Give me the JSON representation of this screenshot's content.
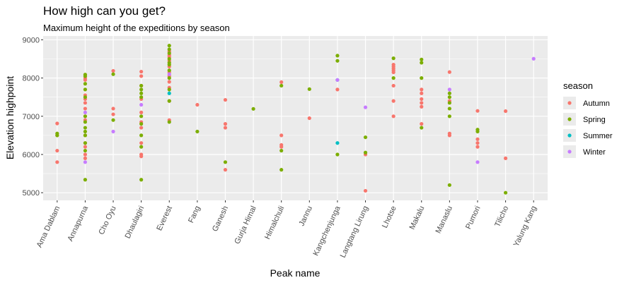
{
  "chart_data": {
    "type": "scatter",
    "title": "How high can you get?",
    "subtitle": "Maximum height of the expeditions by season",
    "xlabel": "Peak name",
    "ylabel": "Elevation highpoint",
    "ylim": [
      4800,
      9100
    ],
    "yticks": [
      5000,
      6000,
      7000,
      8000,
      9000
    ],
    "grid": true,
    "legend_position": "right",
    "legend_title": "season",
    "categories": [
      "Ama Dablam",
      "Annapurna",
      "Cho Oyu",
      "Dhaulagiri",
      "Everest",
      "Fang",
      "Ganesh",
      "Gurja Himal",
      "Himalchuli",
      "Jannu",
      "Kangchenjunga",
      "Langtang Lirung",
      "Lhotse",
      "Makalu",
      "Manaslu",
      "Pumori",
      "Tilicho",
      "Yalung Kang"
    ],
    "series": [
      {
        "name": "Autumn",
        "color": "#F8766D",
        "points": [
          [
            "Ama Dablam",
            6812
          ],
          [
            "Ama Dablam",
            6500
          ],
          [
            "Ama Dablam",
            6100
          ],
          [
            "Ama Dablam",
            5800
          ],
          [
            "Annapurna",
            8000
          ],
          [
            "Annapurna",
            7950
          ],
          [
            "Annapurna",
            7550
          ],
          [
            "Annapurna",
            7450
          ],
          [
            "Annapurna",
            7350
          ],
          [
            "Annapurna",
            7200
          ],
          [
            "Annapurna",
            7000
          ],
          [
            "Annapurna",
            6900
          ],
          [
            "Annapurna",
            6500
          ],
          [
            "Annapurna",
            6300
          ],
          [
            "Annapurna",
            6200
          ],
          [
            "Annapurna",
            6000
          ],
          [
            "Annapurna",
            5900
          ],
          [
            "Cho Oyu",
            8188
          ],
          [
            "Cho Oyu",
            7200
          ],
          [
            "Cho Oyu",
            7050
          ],
          [
            "Dhaulagiri",
            8167
          ],
          [
            "Dhaulagiri",
            8050
          ],
          [
            "Dhaulagiri",
            7800
          ],
          [
            "Dhaulagiri",
            7450
          ],
          [
            "Dhaulagiri",
            7100
          ],
          [
            "Dhaulagiri",
            6850
          ],
          [
            "Dhaulagiri",
            6700
          ],
          [
            "Dhaulagiri",
            6300
          ],
          [
            "Dhaulagiri",
            6000
          ],
          [
            "Dhaulagiri",
            5950
          ],
          [
            "Everest",
            8700
          ],
          [
            "Everest",
            8600
          ],
          [
            "Everest",
            8550
          ],
          [
            "Everest",
            8450
          ],
          [
            "Everest",
            8300
          ],
          [
            "Everest",
            8150
          ],
          [
            "Everest",
            8050
          ],
          [
            "Everest",
            7900
          ],
          [
            "Everest",
            7750
          ],
          [
            "Everest",
            7400
          ],
          [
            "Everest",
            6900
          ],
          [
            "Fang",
            7300
          ],
          [
            "Ganesh",
            7429
          ],
          [
            "Ganesh",
            6800
          ],
          [
            "Ganesh",
            6700
          ],
          [
            "Ganesh",
            5600
          ],
          [
            "Himalchuli",
            7893
          ],
          [
            "Himalchuli",
            6500
          ],
          [
            "Himalchuli",
            6250
          ],
          [
            "Himalchuli",
            6200
          ],
          [
            "Jannu",
            6950
          ],
          [
            "Kangchenjunga",
            7700
          ],
          [
            "Langtang Lirung",
            6000
          ],
          [
            "Langtang Lirung",
            5050
          ],
          [
            "Lhotse",
            8350
          ],
          [
            "Lhotse",
            8300
          ],
          [
            "Lhotse",
            8250
          ],
          [
            "Lhotse",
            8200
          ],
          [
            "Lhotse",
            8150
          ],
          [
            "Lhotse",
            7800
          ],
          [
            "Lhotse",
            7400
          ],
          [
            "Lhotse",
            7000
          ],
          [
            "Makalu",
            7700
          ],
          [
            "Makalu",
            7600
          ],
          [
            "Makalu",
            7450
          ],
          [
            "Makalu",
            7350
          ],
          [
            "Makalu",
            7250
          ],
          [
            "Makalu",
            6800
          ],
          [
            "Manaslu",
            8156
          ],
          [
            "Manaslu",
            7400
          ],
          [
            "Manaslu",
            6550
          ],
          [
            "Manaslu",
            6500
          ],
          [
            "Pumori",
            7140
          ],
          [
            "Pumori",
            6400
          ],
          [
            "Pumori",
            6300
          ],
          [
            "Pumori",
            6200
          ],
          [
            "Tilicho",
            7134
          ],
          [
            "Tilicho",
            5900
          ]
        ]
      },
      {
        "name": "Spring",
        "color": "#7CAE00",
        "points": [
          [
            "Ama Dablam",
            6550
          ],
          [
            "Ama Dablam",
            6500
          ],
          [
            "Annapurna",
            8091
          ],
          [
            "Annapurna",
            8050
          ],
          [
            "Annapurna",
            7850
          ],
          [
            "Annapurna",
            7700
          ],
          [
            "Annapurna",
            7500
          ],
          [
            "Annapurna",
            7000
          ],
          [
            "Annapurna",
            6850
          ],
          [
            "Annapurna",
            6700
          ],
          [
            "Annapurna",
            6600
          ],
          [
            "Annapurna",
            6500
          ],
          [
            "Annapurna",
            6300
          ],
          [
            "Annapurna",
            6100
          ],
          [
            "Annapurna",
            5340
          ],
          [
            "Cho Oyu",
            8100
          ],
          [
            "Cho Oyu",
            6900
          ],
          [
            "Dhaulagiri",
            7800
          ],
          [
            "Dhaulagiri",
            7700
          ],
          [
            "Dhaulagiri",
            7600
          ],
          [
            "Dhaulagiri",
            7500
          ],
          [
            "Dhaulagiri",
            7000
          ],
          [
            "Dhaulagiri",
            6800
          ],
          [
            "Dhaulagiri",
            6500
          ],
          [
            "Dhaulagiri",
            6200
          ],
          [
            "Dhaulagiri",
            5340
          ],
          [
            "Everest",
            8848
          ],
          [
            "Everest",
            8750
          ],
          [
            "Everest",
            8650
          ],
          [
            "Everest",
            8500
          ],
          [
            "Everest",
            8400
          ],
          [
            "Everest",
            8350
          ],
          [
            "Everest",
            8200
          ],
          [
            "Everest",
            8000
          ],
          [
            "Everest",
            7700
          ],
          [
            "Everest",
            7400
          ],
          [
            "Everest",
            6850
          ],
          [
            "Fang",
            6600
          ],
          [
            "Ganesh",
            5800
          ],
          [
            "Gurja Himal",
            7193
          ],
          [
            "Himalchuli",
            7800
          ],
          [
            "Himalchuli",
            6100
          ],
          [
            "Himalchuli",
            5600
          ],
          [
            "Jannu",
            7710
          ],
          [
            "Kangchenjunga",
            8586
          ],
          [
            "Kangchenjunga",
            8450
          ],
          [
            "Kangchenjunga",
            6000
          ],
          [
            "Langtang Lirung",
            6450
          ],
          [
            "Langtang Lirung",
            6050
          ],
          [
            "Lhotse",
            8516
          ],
          [
            "Lhotse",
            8000
          ],
          [
            "Makalu",
            8485
          ],
          [
            "Makalu",
            8400
          ],
          [
            "Makalu",
            8000
          ],
          [
            "Makalu",
            6700
          ],
          [
            "Manaslu",
            7600
          ],
          [
            "Manaslu",
            7500
          ],
          [
            "Manaslu",
            7350
          ],
          [
            "Manaslu",
            7200
          ],
          [
            "Manaslu",
            7000
          ],
          [
            "Manaslu",
            5200
          ],
          [
            "Pumori",
            6650
          ],
          [
            "Pumori",
            6600
          ],
          [
            "Tilicho",
            5000
          ]
        ]
      },
      {
        "name": "Summer",
        "color": "#00BFC4",
        "points": [
          [
            "Everest",
            7600
          ],
          [
            "Kangchenjunga",
            7950
          ],
          [
            "Kangchenjunga",
            6300
          ]
        ]
      },
      {
        "name": "Winter",
        "color": "#C77CFF",
        "points": [
          [
            "Annapurna",
            7100
          ],
          [
            "Annapurna",
            5800
          ],
          [
            "Cho Oyu",
            6600
          ],
          [
            "Dhaulagiri",
            7300
          ],
          [
            "Everest",
            8100
          ],
          [
            "Kangchenjunga",
            7950
          ],
          [
            "Langtang Lirung",
            7234
          ],
          [
            "Manaslu",
            7700
          ],
          [
            "Pumori",
            5800
          ],
          [
            "Yalung Kang",
            8505
          ]
        ]
      }
    ]
  }
}
